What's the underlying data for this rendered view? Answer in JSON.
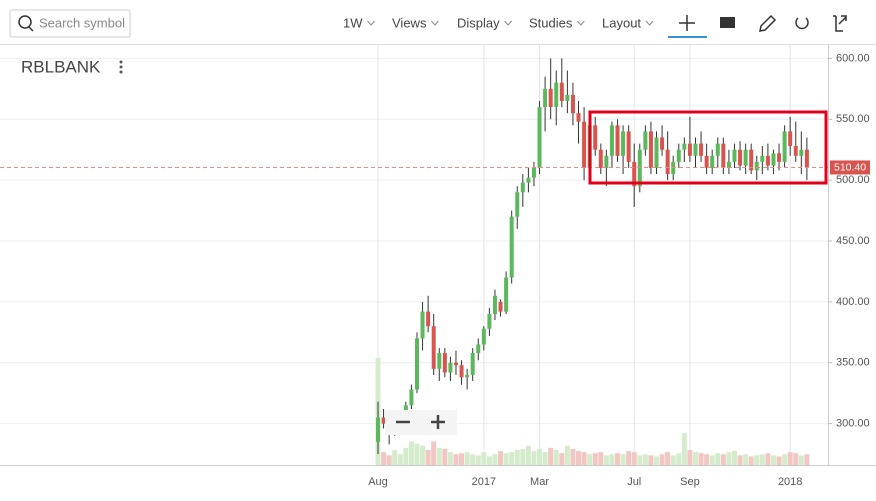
{
  "toolbar": {
    "search_placeholder": "Search symbol",
    "menus": [
      "1W",
      "Views",
      "Display",
      "Studies",
      "Layout"
    ]
  },
  "chart_data": {
    "type": "candlestick",
    "title": "RBLBANK",
    "categories": [
      "Aug",
      null,
      null,
      null,
      null,
      null,
      null,
      null,
      null,
      null,
      null,
      null,
      null,
      null,
      null,
      null,
      null,
      null,
      null,
      "2017",
      null,
      null,
      null,
      null,
      null,
      null,
      null,
      null,
      null,
      "Mar",
      null,
      null,
      null,
      null,
      null,
      null,
      null,
      null,
      null,
      null,
      null,
      null,
      null,
      null,
      null,
      null,
      "Jul",
      null,
      null,
      null,
      null,
      null,
      null,
      null,
      null,
      null,
      "Sep",
      null,
      null,
      null,
      null,
      null,
      null,
      null,
      null,
      null,
      null,
      null,
      null,
      null,
      null,
      null,
      null,
      null,
      "2018",
      null,
      null,
      null
    ],
    "open": [
      285,
      305,
      300,
      298,
      303,
      307,
      315,
      328,
      370,
      392,
      380,
      345,
      358,
      342,
      350,
      348,
      338,
      340,
      358,
      365,
      378,
      390,
      400,
      392,
      420,
      470,
      490,
      498,
      502,
      510,
      560,
      575,
      560,
      580,
      565,
      570,
      555,
      548,
      510,
      545,
      525,
      510,
      520,
      545,
      520,
      540,
      515,
      495,
      525,
      540,
      510,
      535,
      525,
      505,
      515,
      525,
      530,
      520,
      530,
      520,
      510,
      520,
      530,
      510,
      515,
      525,
      512,
      525,
      508,
      515,
      520,
      512,
      522,
      515,
      540,
      528,
      520,
      525
    ],
    "high": [
      318,
      312,
      305,
      308,
      310,
      318,
      332,
      375,
      400,
      405,
      390,
      362,
      362,
      355,
      360,
      352,
      345,
      362,
      370,
      380,
      395,
      410,
      402,
      425,
      475,
      495,
      505,
      510,
      515,
      565,
      585,
      600,
      590,
      600,
      590,
      580,
      565,
      560,
      550,
      552,
      530,
      525,
      548,
      550,
      545,
      545,
      530,
      530,
      545,
      548,
      540,
      545,
      540,
      520,
      530,
      535,
      552,
      535,
      540,
      530,
      525,
      535,
      535,
      525,
      530,
      532,
      530,
      530,
      520,
      528,
      530,
      525,
      530,
      545,
      552,
      548,
      540,
      535
    ],
    "low": [
      275,
      296,
      283,
      290,
      298,
      302,
      312,
      325,
      360,
      375,
      340,
      335,
      338,
      335,
      340,
      332,
      328,
      335,
      352,
      360,
      372,
      385,
      388,
      390,
      415,
      460,
      478,
      490,
      495,
      505,
      540,
      550,
      545,
      560,
      555,
      545,
      530,
      500,
      505,
      520,
      505,
      495,
      510,
      515,
      505,
      510,
      478,
      490,
      520,
      505,
      505,
      520,
      500,
      500,
      510,
      515,
      515,
      510,
      515,
      505,
      505,
      510,
      505,
      505,
      510,
      508,
      505,
      505,
      500,
      505,
      508,
      505,
      508,
      510,
      520,
      515,
      505,
      500
    ],
    "close": [
      305,
      300,
      298,
      303,
      307,
      315,
      328,
      370,
      392,
      380,
      345,
      358,
      342,
      350,
      348,
      338,
      340,
      358,
      365,
      378,
      390,
      405,
      392,
      420,
      470,
      490,
      498,
      502,
      510,
      560,
      575,
      560,
      580,
      565,
      570,
      555,
      548,
      510,
      545,
      525,
      510,
      520,
      545,
      520,
      540,
      515,
      495,
      525,
      540,
      510,
      535,
      525,
      505,
      515,
      525,
      530,
      520,
      530,
      520,
      510,
      520,
      530,
      510,
      515,
      525,
      512,
      525,
      508,
      515,
      520,
      512,
      522,
      515,
      540,
      528,
      520,
      525,
      510.4
    ],
    "volume": [
      100,
      12,
      9,
      14,
      10,
      16,
      22,
      20,
      18,
      14,
      22,
      16,
      15,
      12,
      10,
      11,
      12,
      10,
      9,
      12,
      8,
      10,
      13,
      11,
      12,
      14,
      15,
      18,
      13,
      15,
      12,
      16,
      14,
      11,
      18,
      15,
      13,
      12,
      10,
      11,
      12,
      9,
      10,
      11,
      10,
      13,
      12,
      9,
      10,
      9,
      8,
      10,
      12,
      9,
      11,
      30,
      14,
      12,
      11,
      10,
      9,
      11,
      10,
      12,
      13,
      9,
      10,
      8,
      9,
      10,
      11,
      9,
      8,
      10,
      12,
      11,
      9,
      10
    ],
    "volume_lim": [
      0,
      112
    ],
    "up_color": "#5cb85c",
    "down_color": "#d9534f",
    "up_volume_color": "#d4ebcc",
    "down_volume_color": "#f1c6c3",
    "ylim": [
      266,
      611
    ],
    "yticks": [
      {
        "value": 300,
        "label": "300.00"
      },
      {
        "value": 350,
        "label": "350.00"
      },
      {
        "value": 400,
        "label": "400.00"
      },
      {
        "value": 450,
        "label": "450.00"
      },
      {
        "value": 500,
        "label": "500.00"
      },
      {
        "value": 550,
        "label": "550.00"
      },
      {
        "value": 600,
        "label": "600.00"
      }
    ],
    "last_price": {
      "value": 510.4,
      "label": "510.40"
    },
    "grid": true
  }
}
